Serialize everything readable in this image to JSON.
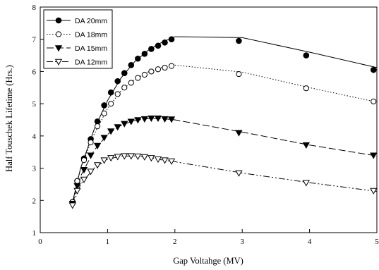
{
  "chart_data": {
    "type": "line",
    "title": "",
    "xlabel": "Gap Voltahge (MV)",
    "ylabel": "Half Touschek Lifetime (Hrs.)",
    "xlim": [
      0,
      5
    ],
    "ylim": [
      1,
      8
    ],
    "xticks": [
      "0",
      "1",
      "2",
      "3",
      "4",
      "5"
    ],
    "yticks": [
      "1",
      "2",
      "3",
      "4",
      "5",
      "6",
      "7",
      "8"
    ],
    "grid": false,
    "legend_position": "top-left",
    "series": [
      {
        "name": "DA 20mm",
        "marker": "filled-circle",
        "line_style": "solid",
        "markers": [
          [
            0.48,
            1.95
          ],
          [
            0.55,
            2.6
          ],
          [
            0.65,
            3.3
          ],
          [
            0.75,
            3.9
          ],
          [
            0.85,
            4.45
          ],
          [
            0.95,
            4.95
          ],
          [
            1.05,
            5.35
          ],
          [
            1.15,
            5.7
          ],
          [
            1.25,
            5.95
          ],
          [
            1.35,
            6.2
          ],
          [
            1.45,
            6.4
          ],
          [
            1.55,
            6.55
          ],
          [
            1.65,
            6.7
          ],
          [
            1.75,
            6.8
          ],
          [
            1.85,
            6.9
          ],
          [
            1.95,
            7.0
          ],
          [
            2.95,
            6.95
          ],
          [
            3.95,
            6.5
          ],
          [
            4.95,
            6.05
          ]
        ],
        "line": [
          [
            0.48,
            1.95
          ],
          [
            0.6,
            3.0
          ],
          [
            0.8,
            4.2
          ],
          [
            1.0,
            5.1
          ],
          [
            1.2,
            5.8
          ],
          [
            1.4,
            6.3
          ],
          [
            1.6,
            6.65
          ],
          [
            1.8,
            6.9
          ],
          [
            2.0,
            7.08
          ],
          [
            3.0,
            7.05
          ],
          [
            4.0,
            6.6
          ],
          [
            5.0,
            6.12
          ]
        ]
      },
      {
        "name": "DA 18mm",
        "marker": "open-circle",
        "line_style": "dotted",
        "markers": [
          [
            0.48,
            1.95
          ],
          [
            0.55,
            2.6
          ],
          [
            0.65,
            3.25
          ],
          [
            0.75,
            3.8
          ],
          [
            0.85,
            4.3
          ],
          [
            0.95,
            4.7
          ],
          [
            1.05,
            5.0
          ],
          [
            1.15,
            5.3
          ],
          [
            1.25,
            5.5
          ],
          [
            1.35,
            5.65
          ],
          [
            1.45,
            5.8
          ],
          [
            1.55,
            5.9
          ],
          [
            1.65,
            6.0
          ],
          [
            1.75,
            6.07
          ],
          [
            1.85,
            6.12
          ],
          [
            1.95,
            6.17
          ],
          [
            2.95,
            5.92
          ],
          [
            3.95,
            5.48
          ],
          [
            4.95,
            5.07
          ]
        ],
        "line": [
          [
            0.48,
            1.95
          ],
          [
            0.6,
            3.0
          ],
          [
            0.8,
            4.05
          ],
          [
            1.0,
            4.85
          ],
          [
            1.2,
            5.4
          ],
          [
            1.4,
            5.75
          ],
          [
            1.6,
            5.98
          ],
          [
            1.8,
            6.12
          ],
          [
            2.0,
            6.2
          ],
          [
            3.0,
            5.98
          ],
          [
            4.0,
            5.5
          ],
          [
            5.0,
            5.05
          ]
        ]
      },
      {
        "name": "DA 15mm",
        "marker": "filled-triangle-down",
        "line_style": "dashed",
        "markers": [
          [
            0.48,
            1.9
          ],
          [
            0.55,
            2.45
          ],
          [
            0.65,
            2.95
          ],
          [
            0.75,
            3.4
          ],
          [
            0.85,
            3.7
          ],
          [
            0.95,
            3.95
          ],
          [
            1.05,
            4.15
          ],
          [
            1.15,
            4.28
          ],
          [
            1.25,
            4.38
          ],
          [
            1.35,
            4.45
          ],
          [
            1.45,
            4.5
          ],
          [
            1.55,
            4.53
          ],
          [
            1.65,
            4.55
          ],
          [
            1.75,
            4.55
          ],
          [
            1.85,
            4.53
          ],
          [
            1.95,
            4.52
          ],
          [
            2.95,
            4.1
          ],
          [
            3.95,
            3.72
          ],
          [
            4.95,
            3.4
          ]
        ],
        "line": [
          [
            0.48,
            1.9
          ],
          [
            0.6,
            2.75
          ],
          [
            0.8,
            3.55
          ],
          [
            1.0,
            4.05
          ],
          [
            1.2,
            4.33
          ],
          [
            1.4,
            4.48
          ],
          [
            1.6,
            4.54
          ],
          [
            1.8,
            4.54
          ],
          [
            2.0,
            4.5
          ],
          [
            3.0,
            4.12
          ],
          [
            4.0,
            3.72
          ],
          [
            5.0,
            3.38
          ]
        ]
      },
      {
        "name": "DA 12mm",
        "marker": "open-triangle-down",
        "line_style": "dash-dot-dot",
        "markers": [
          [
            0.48,
            1.85
          ],
          [
            0.55,
            2.3
          ],
          [
            0.65,
            2.65
          ],
          [
            0.75,
            2.9
          ],
          [
            0.85,
            3.1
          ],
          [
            0.95,
            3.25
          ],
          [
            1.05,
            3.32
          ],
          [
            1.15,
            3.36
          ],
          [
            1.25,
            3.38
          ],
          [
            1.35,
            3.38
          ],
          [
            1.45,
            3.37
          ],
          [
            1.55,
            3.35
          ],
          [
            1.65,
            3.32
          ],
          [
            1.75,
            3.28
          ],
          [
            1.85,
            3.25
          ],
          [
            1.95,
            3.22
          ],
          [
            2.95,
            2.85
          ],
          [
            3.95,
            2.55
          ],
          [
            4.95,
            2.3
          ]
        ],
        "line": [
          [
            0.48,
            1.85
          ],
          [
            0.6,
            2.5
          ],
          [
            0.8,
            3.0
          ],
          [
            1.0,
            3.28
          ],
          [
            1.2,
            3.37
          ],
          [
            1.4,
            3.38
          ],
          [
            1.6,
            3.34
          ],
          [
            1.8,
            3.26
          ],
          [
            2.0,
            3.2
          ],
          [
            3.0,
            2.85
          ],
          [
            4.0,
            2.55
          ],
          [
            5.0,
            2.28
          ]
        ]
      }
    ]
  }
}
